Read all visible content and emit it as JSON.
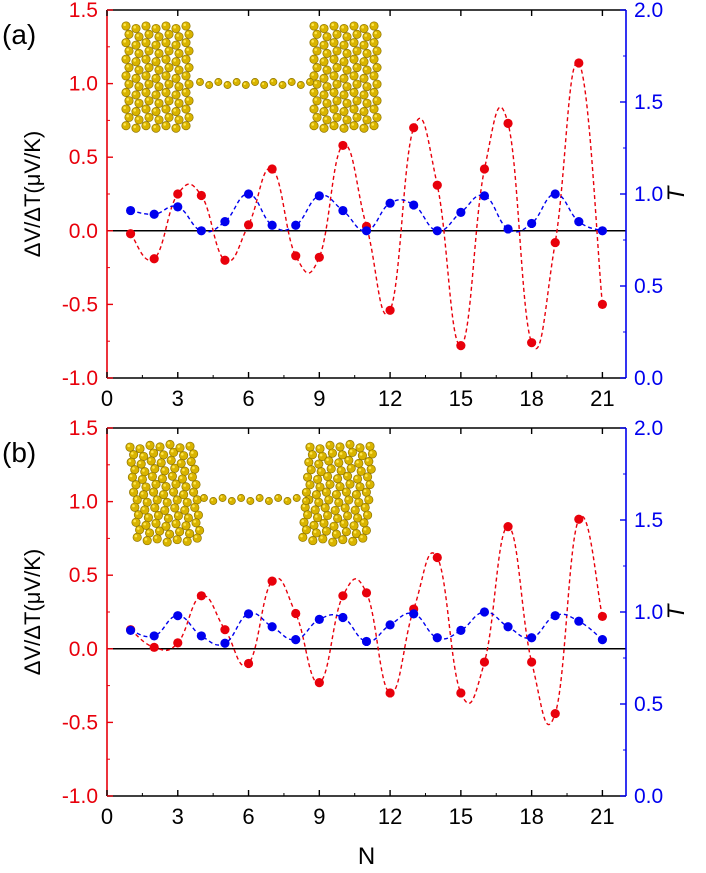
{
  "chart_data": [
    {
      "type": "scatter",
      "panel_label": "(a)",
      "xlabel": "",
      "ylabel_left": "ΔV/ΔT(μV/K)",
      "ylabel_right": "T",
      "xlim": [
        0,
        22
      ],
      "ylim_left": [
        -1.0,
        1.5
      ],
      "ylim_right": [
        0.0,
        2.0
      ],
      "x_ticks": [
        "0",
        "3",
        "6",
        "9",
        "12",
        "15",
        "18",
        "21"
      ],
      "y_left_ticks": [
        "-1.0",
        "-0.5",
        "0.0",
        "0.5",
        "1.0",
        "1.5"
      ],
      "y_right_ticks": [
        "0.0",
        "0.5",
        "1.0",
        "1.5",
        "2.0"
      ],
      "left_axis_color": "#e8000b",
      "right_axis_color": "#0000ee",
      "zero_line": true,
      "series": [
        {
          "axis": "left",
          "color": "#e8000b",
          "style": "dots + dashed fit",
          "x": [
            1,
            2,
            3,
            4,
            5,
            6,
            7,
            8,
            9,
            10,
            11,
            12,
            13,
            14,
            15,
            16,
            17,
            18,
            19,
            20,
            21
          ],
          "y": [
            -0.02,
            -0.19,
            0.25,
            0.24,
            -0.2,
            0.04,
            0.42,
            -0.17,
            -0.18,
            0.58,
            0.03,
            -0.54,
            0.7,
            0.31,
            -0.78,
            0.42,
            0.73,
            -0.76,
            -0.08,
            1.14,
            -0.5
          ]
        },
        {
          "axis": "right",
          "color": "#0000ee",
          "style": "dots + dashed fit",
          "x": [
            1,
            2,
            3,
            4,
            5,
            6,
            7,
            8,
            9,
            10,
            11,
            12,
            13,
            14,
            15,
            16,
            17,
            18,
            19,
            20,
            21
          ],
          "y": [
            0.91,
            0.89,
            0.93,
            0.8,
            0.85,
            1.0,
            0.83,
            0.83,
            0.99,
            0.91,
            0.8,
            0.95,
            0.94,
            0.8,
            0.9,
            0.99,
            0.81,
            0.84,
            1.0,
            0.85,
            0.8
          ]
        }
      ],
      "inset": "atomic structure of a monatomic gold chain bridging two gold electrodes"
    },
    {
      "type": "scatter",
      "panel_label": "(b)",
      "xlabel": "N",
      "ylabel_left": "ΔV/ΔT(μV/K)",
      "ylabel_right": "T",
      "xlim": [
        0,
        22
      ],
      "ylim_left": [
        -1.0,
        1.5
      ],
      "ylim_right": [
        0.0,
        2.0
      ],
      "x_ticks": [
        "0",
        "3",
        "6",
        "9",
        "12",
        "15",
        "18",
        "21"
      ],
      "y_left_ticks": [
        "-1.0",
        "-0.5",
        "0.0",
        "0.5",
        "1.0",
        "1.5"
      ],
      "y_right_ticks": [
        "0.0",
        "0.5",
        "1.0",
        "1.5",
        "2.0"
      ],
      "left_axis_color": "#e8000b",
      "right_axis_color": "#0000ee",
      "zero_line": true,
      "series": [
        {
          "axis": "left",
          "color": "#e8000b",
          "style": "dots + dashed fit",
          "x": [
            1,
            2,
            3,
            4,
            5,
            6,
            7,
            8,
            9,
            10,
            11,
            12,
            13,
            14,
            15,
            16,
            17,
            18,
            19,
            20,
            21
          ],
          "y": [
            0.13,
            0.01,
            0.04,
            0.36,
            0.13,
            -0.1,
            0.46,
            0.24,
            -0.23,
            0.36,
            0.38,
            -0.3,
            0.27,
            0.62,
            -0.3,
            -0.09,
            0.83,
            -0.09,
            -0.44,
            0.88,
            0.22
          ]
        },
        {
          "axis": "right",
          "color": "#0000ee",
          "style": "dots + dashed fit",
          "x": [
            1,
            2,
            3,
            4,
            5,
            6,
            7,
            8,
            9,
            10,
            11,
            12,
            13,
            14,
            15,
            16,
            17,
            18,
            19,
            20,
            21
          ],
          "y": [
            0.9,
            0.87,
            0.98,
            0.87,
            0.83,
            0.99,
            0.92,
            0.85,
            0.96,
            0.97,
            0.84,
            0.93,
            0.99,
            0.86,
            0.9,
            1.0,
            0.92,
            0.86,
            0.98,
            0.95,
            0.85
          ]
        }
      ],
      "inset": "atomic structure of a monatomic gold chain bridging two gold electrodes"
    }
  ]
}
